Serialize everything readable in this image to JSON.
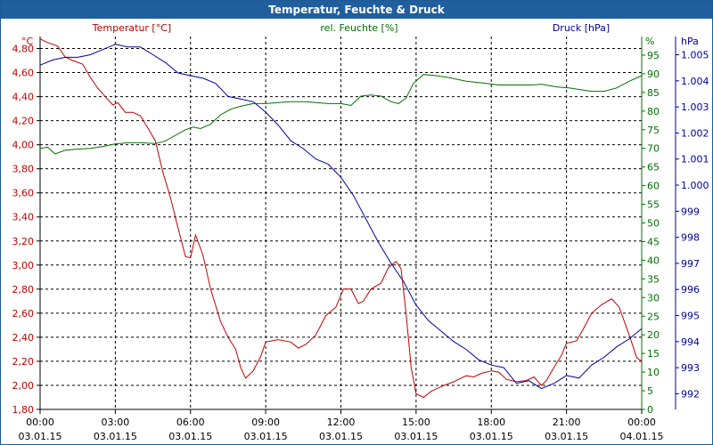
{
  "window": {
    "title": "Temperatur, Feuchte & Druck"
  },
  "chart_data": {
    "type": "line",
    "title": "Temperatur, Feuchte & Druck",
    "x_ticks": [
      {
        "time": "00:00",
        "date": "03.01.15"
      },
      {
        "time": "03:00",
        "date": "03.01.15"
      },
      {
        "time": "06:00",
        "date": "03.01.15"
      },
      {
        "time": "09:00",
        "date": "03.01.15"
      },
      {
        "time": "12:00",
        "date": "03.01.15"
      },
      {
        "time": "15:00",
        "date": "03.01.15"
      },
      {
        "time": "18:00",
        "date": "03.01.15"
      },
      {
        "time": "21:00",
        "date": "03.01.15"
      },
      {
        "time": "00:00",
        "date": "04.01.15"
      }
    ],
    "xlim_hours": [
      0,
      24
    ],
    "grid": true,
    "axes": {
      "temperature": {
        "label": "Temperatur [°C]",
        "unit": "°C",
        "color": "#c00000",
        "ylim": [
          1.8,
          4.9
        ],
        "ticks": [
          "1,80",
          "2,00",
          "2,20",
          "2,40",
          "2,60",
          "2,80",
          "3,00",
          "3,20",
          "3,40",
          "3,60",
          "3,80",
          "4,00",
          "4,20",
          "4,40",
          "4,60",
          "4,80"
        ]
      },
      "humidity": {
        "label": "rel. Feuchte [%]",
        "unit": "%",
        "color": "#007000",
        "ylim": [
          0,
          100
        ],
        "ticks": [
          "0",
          "5",
          "10",
          "15",
          "20",
          "25",
          "30",
          "35",
          "40",
          "45",
          "50",
          "55",
          "60",
          "65",
          "70",
          "75",
          "80",
          "85",
          "90",
          "95"
        ]
      },
      "pressure": {
        "label": "Druck [hPa]",
        "unit": "hPa",
        "color": "#0000a0",
        "ylim": [
          991.4,
          1005.7
        ],
        "ticks": [
          "992",
          "993",
          "994",
          "995",
          "996",
          "997",
          "998",
          "999",
          "1.000",
          "1.001",
          "1.002",
          "1.003",
          "1.004",
          "1.005"
        ]
      }
    },
    "series": [
      {
        "name": "Temperatur [°C]",
        "axis": "temperature",
        "color": "#c00000",
        "points": [
          [
            0.0,
            4.88
          ],
          [
            0.3,
            4.85
          ],
          [
            0.7,
            4.82
          ],
          [
            1.0,
            4.73
          ],
          [
            1.3,
            4.7
          ],
          [
            1.7,
            4.67
          ],
          [
            2.0,
            4.56
          ],
          [
            2.3,
            4.47
          ],
          [
            2.6,
            4.4
          ],
          [
            2.9,
            4.33
          ],
          [
            3.1,
            4.35
          ],
          [
            3.4,
            4.27
          ],
          [
            3.7,
            4.27
          ],
          [
            4.0,
            4.24
          ],
          [
            4.3,
            4.14
          ],
          [
            4.6,
            4.03
          ],
          [
            4.9,
            3.77
          ],
          [
            5.2,
            3.56
          ],
          [
            5.5,
            3.31
          ],
          [
            5.8,
            3.07
          ],
          [
            6.0,
            3.06
          ],
          [
            6.2,
            3.25
          ],
          [
            6.5,
            3.08
          ],
          [
            6.8,
            2.8
          ],
          [
            7.2,
            2.53
          ],
          [
            7.5,
            2.4
          ],
          [
            7.8,
            2.3
          ],
          [
            8.0,
            2.15
          ],
          [
            8.2,
            2.06
          ],
          [
            8.5,
            2.12
          ],
          [
            8.8,
            2.24
          ],
          [
            9.0,
            2.36
          ],
          [
            9.5,
            2.38
          ],
          [
            10.0,
            2.36
          ],
          [
            10.3,
            2.31
          ],
          [
            10.6,
            2.34
          ],
          [
            11.0,
            2.42
          ],
          [
            11.4,
            2.58
          ],
          [
            11.8,
            2.65
          ],
          [
            12.1,
            2.8
          ],
          [
            12.4,
            2.8
          ],
          [
            12.7,
            2.68
          ],
          [
            12.9,
            2.7
          ],
          [
            13.2,
            2.8
          ],
          [
            13.6,
            2.85
          ],
          [
            13.9,
            2.98
          ],
          [
            14.2,
            3.03
          ],
          [
            14.4,
            2.97
          ],
          [
            14.6,
            2.6
          ],
          [
            14.8,
            2.15
          ],
          [
            15.0,
            1.93
          ],
          [
            15.3,
            1.9
          ],
          [
            15.6,
            1.95
          ],
          [
            16.0,
            1.99
          ],
          [
            16.5,
            2.03
          ],
          [
            17.0,
            2.08
          ],
          [
            17.3,
            2.07
          ],
          [
            17.6,
            2.1
          ],
          [
            18.0,
            2.12
          ],
          [
            18.3,
            2.11
          ],
          [
            18.6,
            2.05
          ],
          [
            19.0,
            2.03
          ],
          [
            19.4,
            2.04
          ],
          [
            19.7,
            2.07
          ],
          [
            20.0,
            2.0
          ],
          [
            20.2,
            2.04
          ],
          [
            20.5,
            2.15
          ],
          [
            20.8,
            2.25
          ],
          [
            21.0,
            2.35
          ],
          [
            21.4,
            2.37
          ],
          [
            21.7,
            2.48
          ],
          [
            22.0,
            2.6
          ],
          [
            22.4,
            2.67
          ],
          [
            22.8,
            2.72
          ],
          [
            23.1,
            2.65
          ],
          [
            23.5,
            2.42
          ],
          [
            23.8,
            2.23
          ],
          [
            24.0,
            2.2
          ]
        ]
      },
      {
        "name": "rel. Feuchte [%]",
        "axis": "humidity",
        "color": "#007000",
        "points": [
          [
            0.0,
            70.0
          ],
          [
            0.3,
            70.3
          ],
          [
            0.6,
            68.5
          ],
          [
            1.0,
            69.5
          ],
          [
            1.5,
            69.8
          ],
          [
            2.0,
            70.0
          ],
          [
            2.5,
            70.5
          ],
          [
            3.0,
            71.2
          ],
          [
            3.5,
            71.5
          ],
          [
            4.0,
            71.5
          ],
          [
            4.6,
            71.3
          ],
          [
            5.0,
            72.0
          ],
          [
            5.4,
            73.5
          ],
          [
            5.8,
            75.0
          ],
          [
            6.1,
            75.7
          ],
          [
            6.4,
            75.3
          ],
          [
            6.8,
            76.5
          ],
          [
            7.2,
            79.0
          ],
          [
            7.6,
            80.5
          ],
          [
            8.0,
            81.3
          ],
          [
            8.5,
            82.0
          ],
          [
            9.0,
            82.0
          ],
          [
            9.5,
            82.3
          ],
          [
            10.0,
            82.5
          ],
          [
            10.6,
            82.5
          ],
          [
            11.0,
            82.3
          ],
          [
            11.5,
            82.0
          ],
          [
            12.0,
            82.0
          ],
          [
            12.4,
            81.5
          ],
          [
            12.8,
            84.0
          ],
          [
            13.2,
            84.3
          ],
          [
            13.6,
            84.0
          ],
          [
            14.0,
            82.5
          ],
          [
            14.3,
            82.0
          ],
          [
            14.6,
            83.5
          ],
          [
            14.9,
            87.5
          ],
          [
            15.3,
            89.8
          ],
          [
            15.8,
            89.5
          ],
          [
            16.3,
            89.0
          ],
          [
            17.0,
            88.0
          ],
          [
            17.7,
            87.5
          ],
          [
            18.3,
            87.0
          ],
          [
            19.0,
            87.0
          ],
          [
            19.6,
            87.0
          ],
          [
            20.0,
            87.2
          ],
          [
            20.6,
            86.5
          ],
          [
            21.1,
            86.2
          ],
          [
            21.5,
            85.8
          ],
          [
            22.0,
            85.3
          ],
          [
            22.5,
            85.3
          ],
          [
            23.0,
            86.2
          ],
          [
            23.5,
            88.0
          ],
          [
            24.0,
            89.5
          ]
        ]
      },
      {
        "name": "Druck [hPa]",
        "axis": "pressure",
        "color": "#0000a0",
        "points": [
          [
            0.0,
            1004.6
          ],
          [
            0.5,
            1004.8
          ],
          [
            1.0,
            1004.9
          ],
          [
            1.5,
            1004.9
          ],
          [
            2.0,
            1005.0
          ],
          [
            2.5,
            1005.2
          ],
          [
            3.0,
            1005.4
          ],
          [
            3.5,
            1005.3
          ],
          [
            4.0,
            1005.3
          ],
          [
            4.5,
            1005.0
          ],
          [
            5.0,
            1004.7
          ],
          [
            5.5,
            1004.3
          ],
          [
            6.0,
            1004.2
          ],
          [
            6.5,
            1004.1
          ],
          [
            7.0,
            1003.9
          ],
          [
            7.5,
            1003.4
          ],
          [
            8.0,
            1003.3
          ],
          [
            8.5,
            1003.2
          ],
          [
            9.0,
            1002.8
          ],
          [
            9.5,
            1002.3
          ],
          [
            10.0,
            1001.7
          ],
          [
            10.5,
            1001.4
          ],
          [
            11.0,
            1001.0
          ],
          [
            11.5,
            1000.8
          ],
          [
            12.0,
            1000.3
          ],
          [
            12.5,
            999.6
          ],
          [
            13.0,
            998.7
          ],
          [
            13.5,
            997.8
          ],
          [
            14.0,
            997.0
          ],
          [
            14.5,
            996.3
          ],
          [
            15.0,
            995.4
          ],
          [
            15.5,
            994.8
          ],
          [
            16.0,
            994.4
          ],
          [
            16.5,
            994.0
          ],
          [
            17.0,
            993.7
          ],
          [
            17.5,
            993.3
          ],
          [
            18.0,
            993.1
          ],
          [
            18.5,
            993.0
          ],
          [
            19.0,
            992.4
          ],
          [
            19.5,
            992.5
          ],
          [
            20.0,
            992.2
          ],
          [
            20.5,
            992.4
          ],
          [
            21.0,
            992.7
          ],
          [
            21.5,
            992.6
          ],
          [
            22.0,
            993.1
          ],
          [
            22.5,
            993.4
          ],
          [
            23.0,
            993.8
          ],
          [
            23.5,
            994.1
          ],
          [
            24.0,
            994.5
          ]
        ]
      }
    ]
  }
}
